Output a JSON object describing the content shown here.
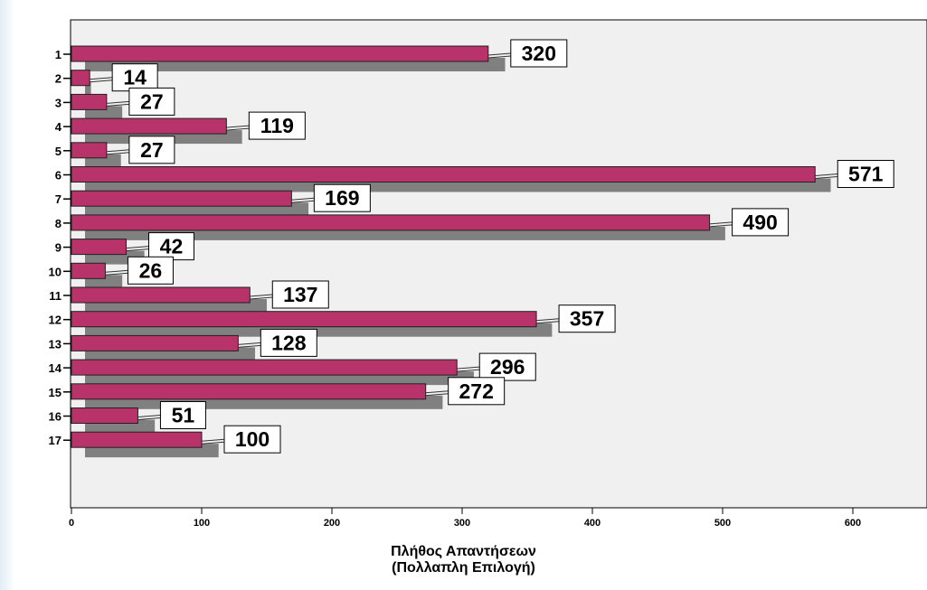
{
  "chart_data": {
    "type": "bar",
    "orientation": "horizontal",
    "categories": [
      "1",
      "2",
      "3",
      "4",
      "5",
      "6",
      "7",
      "8",
      "9",
      "10",
      "11",
      "12",
      "13",
      "14",
      "15",
      "16",
      "17"
    ],
    "series": [
      {
        "values": [
          320,
          14,
          27,
          119,
          27,
          571,
          169,
          490,
          42,
          26,
          137,
          357,
          128,
          296,
          272,
          51,
          100
        ],
        "color": "#b8336a"
      },
      {
        "values": [
          333,
          15,
          39,
          131,
          38,
          583,
          182,
          502,
          56,
          39,
          150,
          369,
          141,
          309,
          285,
          64,
          113
        ],
        "color": "#808080"
      }
    ],
    "data_labels": [
      "320",
      "14",
      "27",
      "119",
      "27",
      "571",
      "169",
      "490",
      "42",
      "26",
      "137",
      "357",
      "128",
      "296",
      "272",
      "51",
      "100"
    ],
    "xlabel_line1": "Πλήθος Απαντήσεων",
    "xlabel_line2": "(Πολλαπλη Επιλογή)",
    "xlim": [
      0,
      660
    ],
    "xticks": [
      0,
      100,
      200,
      300,
      400,
      500,
      600
    ],
    "grid": false,
    "plot_background": "#f0f0f0"
  }
}
